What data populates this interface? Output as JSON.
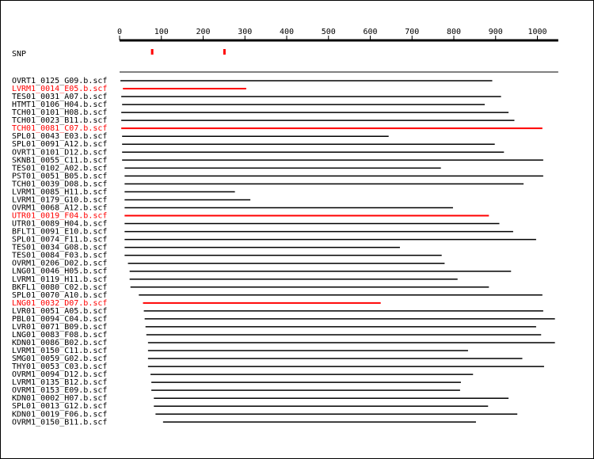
{
  "chart_data": {
    "type": "bar",
    "axis": {
      "min": 0,
      "max": 1050,
      "ticks": [
        0,
        100,
        200,
        300,
        400,
        500,
        600,
        700,
        800,
        900,
        1000
      ]
    },
    "snp": {
      "label": "SNP",
      "positions": [
        78,
        251
      ]
    },
    "reads": [
      {
        "name": "OVRT1_0125_G09.b.scf",
        "start": 2,
        "end": 892,
        "highlight": false
      },
      {
        "name": "LVRM1_0014_E05.b.scf",
        "start": 8,
        "end": 303,
        "highlight": true
      },
      {
        "name": "TES01_0031_A07.b.scf",
        "start": 4,
        "end": 913,
        "highlight": false
      },
      {
        "name": "HTMT1_0106_H04.b.scf",
        "start": 6,
        "end": 874,
        "highlight": false
      },
      {
        "name": "TCH01_0101_H08.b.scf",
        "start": 4,
        "end": 931,
        "highlight": false
      },
      {
        "name": "TCH01_0023_B11.b.scf",
        "start": 4,
        "end": 945,
        "highlight": false
      },
      {
        "name": "TCH01_0081_C07.b.scf",
        "start": 4,
        "end": 1012,
        "highlight": true
      },
      {
        "name": "SPL01_0043_E03.b.scf",
        "start": 6,
        "end": 644,
        "highlight": false
      },
      {
        "name": "SPL01_0091_A12.b.scf",
        "start": 6,
        "end": 898,
        "highlight": false
      },
      {
        "name": "OVRT1_0101_D12.b.scf",
        "start": 6,
        "end": 920,
        "highlight": false
      },
      {
        "name": "SKNB1_0055_C11.b.scf",
        "start": 6,
        "end": 1014,
        "highlight": false
      },
      {
        "name": "TES01_0102_A02.b.scf",
        "start": 12,
        "end": 769,
        "highlight": false
      },
      {
        "name": "PST01_0051_B05.b.scf",
        "start": 12,
        "end": 1014,
        "highlight": false
      },
      {
        "name": "TCH01_0039_D08.b.scf",
        "start": 12,
        "end": 967,
        "highlight": false
      },
      {
        "name": "LVRM1_0085_H11.b.scf",
        "start": 12,
        "end": 276,
        "highlight": false
      },
      {
        "name": "LVRM1_0179_G10.b.scf",
        "start": 12,
        "end": 313,
        "highlight": false
      },
      {
        "name": "OVRM1_0068_A12.b.scf",
        "start": 12,
        "end": 798,
        "highlight": false
      },
      {
        "name": "UTR01_0019_F04.b.scf",
        "start": 12,
        "end": 884,
        "highlight": true
      },
      {
        "name": "UTR01_0089_H04.b.scf",
        "start": 12,
        "end": 909,
        "highlight": false
      },
      {
        "name": "BFLT1_0091_E10.b.scf",
        "start": 12,
        "end": 942,
        "highlight": false
      },
      {
        "name": "SPL01_0074_F11.b.scf",
        "start": 12,
        "end": 997,
        "highlight": false
      },
      {
        "name": "TES01_0034_G08.b.scf",
        "start": 12,
        "end": 671,
        "highlight": false
      },
      {
        "name": "TES01_0084_F03.b.scf",
        "start": 12,
        "end": 771,
        "highlight": false
      },
      {
        "name": "OVRM1_0206_D02.b.scf",
        "start": 20,
        "end": 778,
        "highlight": false
      },
      {
        "name": "LNG01_0046_H05.b.scf",
        "start": 24,
        "end": 937,
        "highlight": false
      },
      {
        "name": "LVRM1_0119_H11.b.scf",
        "start": 24,
        "end": 809,
        "highlight": false
      },
      {
        "name": "BKFL1_0080_C02.b.scf",
        "start": 26,
        "end": 884,
        "highlight": false
      },
      {
        "name": "SPL01_0070_A10.b.scf",
        "start": 46,
        "end": 1012,
        "highlight": false
      },
      {
        "name": "LNG01_0032_D07.b.scf",
        "start": 56,
        "end": 625,
        "highlight": true
      },
      {
        "name": "LVR01_0051_A05.b.scf",
        "start": 58,
        "end": 1014,
        "highlight": false
      },
      {
        "name": "PBL01_0094_C04.b.scf",
        "start": 60,
        "end": 1042,
        "highlight": false
      },
      {
        "name": "LVR01_0071_B09.b.scf",
        "start": 62,
        "end": 997,
        "highlight": false
      },
      {
        "name": "LNG01_0083_F08.b.scf",
        "start": 64,
        "end": 1009,
        "highlight": false
      },
      {
        "name": "KDN01_0086_B02.b.scf",
        "start": 68,
        "end": 1042,
        "highlight": false
      },
      {
        "name": "LVRM1_0150_C11.b.scf",
        "start": 68,
        "end": 834,
        "highlight": false
      },
      {
        "name": "SMG01_0059_G02.b.scf",
        "start": 68,
        "end": 964,
        "highlight": false
      },
      {
        "name": "THY01_0053_C03.b.scf",
        "start": 68,
        "end": 1016,
        "highlight": false
      },
      {
        "name": "OVRM1_0094_D12.b.scf",
        "start": 74,
        "end": 846,
        "highlight": false
      },
      {
        "name": "LVRM1_0135_B12.b.scf",
        "start": 76,
        "end": 817,
        "highlight": false
      },
      {
        "name": "OVRM1_0153_E09.b.scf",
        "start": 76,
        "end": 815,
        "highlight": false
      },
      {
        "name": "KDN01_0002_H07.b.scf",
        "start": 82,
        "end": 931,
        "highlight": false
      },
      {
        "name": "SPL01_0013_G12.b.scf",
        "start": 82,
        "end": 882,
        "highlight": false
      },
      {
        "name": "KDN01_0019_F06.b.scf",
        "start": 86,
        "end": 952,
        "highlight": false
      },
      {
        "name": "OVRM1_0150_B11.b.scf",
        "start": 104,
        "end": 853,
        "highlight": false
      }
    ]
  },
  "colors": {
    "read": "#000000",
    "highlight": "#ff0000",
    "snp": "#ff0000"
  }
}
